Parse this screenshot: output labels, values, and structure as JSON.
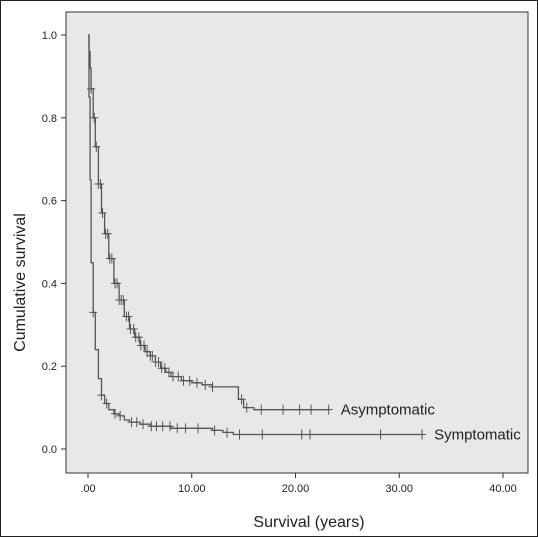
{
  "chart_data": {
    "type": "line",
    "title": "",
    "xlabel": "Survival (years)",
    "ylabel": "Cumulative survival",
    "xlim": [
      -3,
      42
    ],
    "ylim": [
      -0.03,
      1.05
    ],
    "xticks": [
      0,
      10,
      20,
      30,
      40
    ],
    "xtick_labels": [
      ".00",
      "10.00",
      "20.00",
      "30.00",
      "40.00"
    ],
    "yticks": [
      0.0,
      0.2,
      0.4,
      0.6,
      0.8,
      1.0
    ],
    "ytick_labels": [
      "0.0",
      "0.2",
      "0.4",
      "0.6",
      "0.8",
      "1.0"
    ],
    "grid": false,
    "plot_background": "#e8e8e8",
    "line_color": "#555555",
    "series": [
      {
        "name": "Asymptomatic",
        "x": [
          0,
          0.1,
          0.2,
          0.3,
          0.5,
          0.7,
          1.0,
          1.3,
          1.6,
          2.0,
          2.5,
          3.0,
          3.5,
          4.0,
          4.5,
          5.0,
          5.5,
          6.0,
          6.5,
          7.0,
          7.5,
          8.0,
          9.0,
          10.0,
          11.0,
          12.0,
          13.0,
          13.8,
          14.5,
          15.0,
          16.0,
          18.0,
          20.0,
          23.2
        ],
        "y": [
          1.0,
          0.96,
          0.92,
          0.87,
          0.8,
          0.73,
          0.64,
          0.57,
          0.52,
          0.46,
          0.4,
          0.36,
          0.32,
          0.29,
          0.27,
          0.25,
          0.235,
          0.225,
          0.21,
          0.195,
          0.185,
          0.175,
          0.165,
          0.16,
          0.155,
          0.15,
          0.15,
          0.15,
          0.12,
          0.1,
          0.095,
          0.095,
          0.095,
          0.095
        ],
        "censor_x": [
          0.3,
          0.6,
          0.8,
          1.0,
          1.2,
          1.4,
          1.7,
          1.9,
          2.1,
          2.3,
          2.6,
          2.8,
          3.0,
          3.2,
          3.4,
          3.7,
          3.9,
          4.1,
          4.4,
          4.6,
          4.9,
          5.1,
          5.4,
          5.7,
          6.0,
          6.2,
          6.5,
          6.8,
          7.1,
          7.4,
          7.8,
          8.2,
          8.7,
          9.2,
          9.8,
          10.5,
          11.3,
          12.0,
          14.8,
          15.3,
          16.7,
          18.8,
          20.4,
          21.5,
          23.2
        ]
      },
      {
        "name": "Symptomatic",
        "x": [
          0,
          0.1,
          0.2,
          0.3,
          0.5,
          0.7,
          1.0,
          1.3,
          1.6,
          2.0,
          2.5,
          3.0,
          3.5,
          4.0,
          5.0,
          6.0,
          7.0,
          8.0,
          10.0,
          11.0,
          12.0,
          13.0,
          14.0,
          15.0,
          20.0,
          25.0,
          30.0,
          32.2
        ],
        "y": [
          1.0,
          0.85,
          0.65,
          0.45,
          0.33,
          0.24,
          0.17,
          0.13,
          0.11,
          0.095,
          0.085,
          0.08,
          0.07,
          0.065,
          0.06,
          0.055,
          0.055,
          0.05,
          0.05,
          0.05,
          0.045,
          0.04,
          0.035,
          0.035,
          0.035,
          0.035,
          0.035,
          0.035
        ],
        "censor_x": [
          0.5,
          1.3,
          1.8,
          2.6,
          3.1,
          4.2,
          4.7,
          5.3,
          6.1,
          6.6,
          7.2,
          7.9,
          8.6,
          9.4,
          10.6,
          12.2,
          13.4,
          14.6,
          16.8,
          20.6,
          21.4,
          28.2,
          32.2
        ]
      }
    ]
  }
}
